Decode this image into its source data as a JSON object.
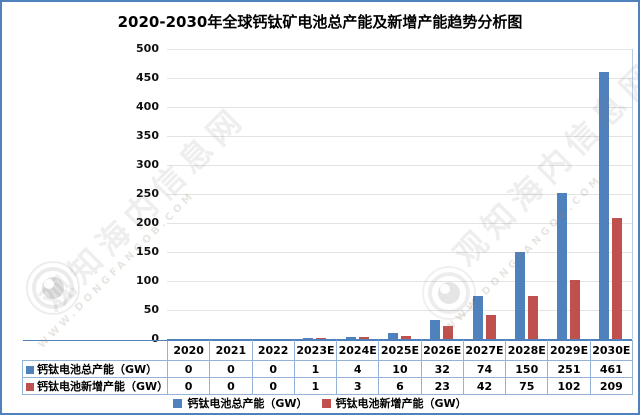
{
  "title": "2020-2030年全球钙钛矿电池总产能及新增产能趋势分析图",
  "colors": {
    "total_series": "#4f81bd",
    "new_series": "#c0504d",
    "gridline": "#e3e3e3",
    "table_border": "#95b3d7",
    "frame_border": "#4f81bd"
  },
  "chart_data": {
    "type": "bar",
    "title": "2020-2030年全球钙钛矿电池总产能及新增产能趋势分析图",
    "categories": [
      "2020",
      "2021",
      "2022",
      "2023E",
      "2024E",
      "2025E",
      "2026E",
      "2027E",
      "2028E",
      "2029E",
      "2030E"
    ],
    "series": [
      {
        "name": "钙钛电池总产能（GW）",
        "color": "#4f81bd",
        "values": [
          0,
          0,
          0,
          1,
          4,
          10,
          32,
          74,
          150,
          251,
          461
        ]
      },
      {
        "name": "钙钛电池新增产能（GW）",
        "color": "#c0504d",
        "values": [
          0,
          0,
          0,
          1,
          3,
          6,
          23,
          42,
          75,
          102,
          209
        ]
      }
    ],
    "xlabel": "",
    "ylabel": "",
    "ylim": [
      0,
      500
    ],
    "ytick_step": 50,
    "yticks": [
      0,
      50,
      100,
      150,
      200,
      250,
      300,
      350,
      400,
      450,
      500
    ],
    "grid": true,
    "legend_position": "bottom",
    "data_table_shown": true
  },
  "legend": {
    "items": [
      {
        "label": "钙钛电池总产能（GW）",
        "color": "#4f81bd"
      },
      {
        "label": "钙钛电池新增产能（GW）",
        "color": "#c0504d"
      }
    ]
  },
  "watermark": {
    "site_text": "观知海内信息网",
    "url_text": "WWW.DONGFANGOB.COM"
  }
}
